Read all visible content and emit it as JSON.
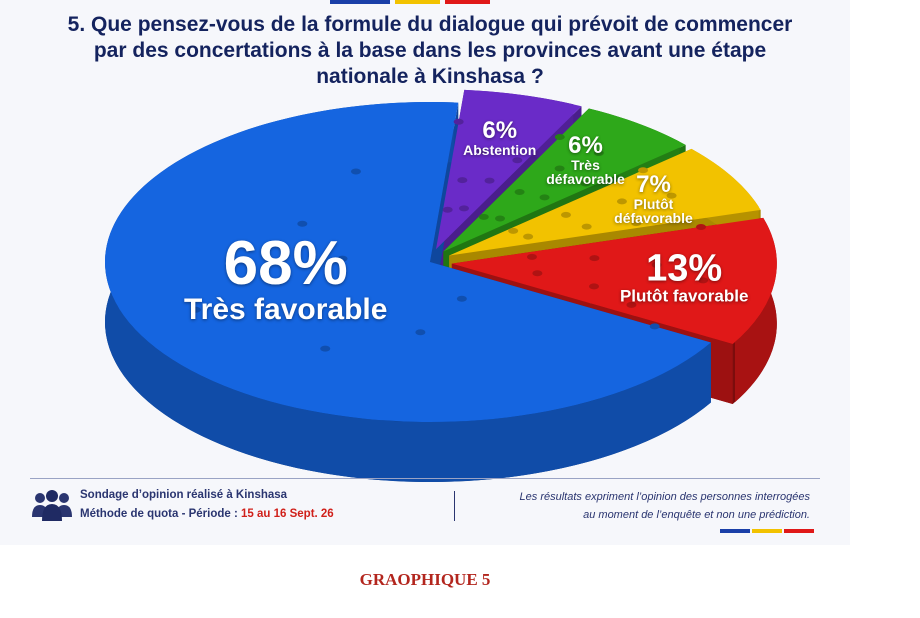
{
  "chart_data": {
    "type": "pie",
    "title": "5. Que pensez-vous de la formule du dialogue qui prévoit de commencer par des concertations à la base dans les provinces avant une étape nationale à Kinshasa ?",
    "categories": [
      "Abstention",
      "Très défavorable",
      "Plutôt défavorable",
      "Plutôt favorable",
      "Très favorable"
    ],
    "values": [
      6,
      6,
      7,
      13,
      68
    ],
    "value_labels": [
      "6%",
      "6%",
      "7%",
      "13%",
      "68%"
    ],
    "colors": [
      "#6a2bc8",
      "#2ea81a",
      "#f2c200",
      "#e01818",
      "#1565e0"
    ]
  },
  "footer": {
    "source": "Sondage d’opinion réalisé à Kinshasa",
    "method": "Méthode de quota - Période :",
    "period": "15 au 16 Sept. 26",
    "note_lines": [
      "Les résultats expriment l’opinion des personnes interrogées",
      "au moment de l’enquête et non une prédiction."
    ]
  },
  "caption": "GRAOPHIQUE 5"
}
